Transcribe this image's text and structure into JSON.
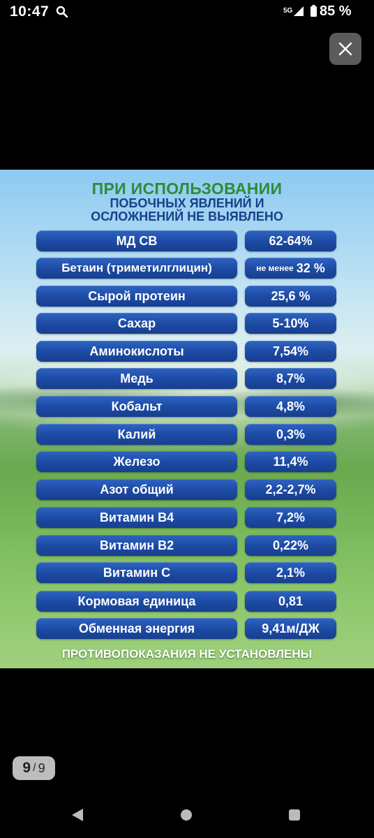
{
  "status_bar": {
    "time": "10:47",
    "network": "5G",
    "battery_percent": "85 %"
  },
  "headline": {
    "line1": "ПРИ ИСПОЛЬЗОВАНИИ",
    "line2": "ПОБОЧНЫХ ЯВЛЕНИЙ И",
    "line3": "ОСЛОЖНЕНИЙ НЕ ВЫЯВЛЕНО"
  },
  "rows": [
    {
      "name": "МД СВ",
      "value": "62-64%"
    },
    {
      "name": "Бетаин (триметилглицин)",
      "value_prefix": "не менее",
      "value": "32 %"
    },
    {
      "name": "Сырой протеин",
      "value": "25,6 %"
    },
    {
      "name": "Сахар",
      "value": "5-10%"
    },
    {
      "name": "Аминокислоты",
      "value": "7,54%"
    },
    {
      "name": "Медь",
      "value": "8,7%"
    },
    {
      "name": "Кобальт",
      "value": "4,8%"
    },
    {
      "name": "Калий",
      "value": "0,3%"
    },
    {
      "name": "Железо",
      "value": "11,4%"
    },
    {
      "name": "Азот общий",
      "value": "2,2-2,7%"
    },
    {
      "name": "Витамин В4",
      "value": "7,2%"
    },
    {
      "name": "Витамин В2",
      "value": "0,22%"
    },
    {
      "name": "Витамин С",
      "value": "2,1%"
    },
    {
      "name": "Кормовая единица",
      "value": "0,81"
    },
    {
      "name": "Обменная энергия",
      "value": "9,41м/ДЖ"
    }
  ],
  "footer": "ПРОТИВОПОКАЗАНИЯ НЕ УСТАНОВЛЕНЫ",
  "page_counter": {
    "current": "9",
    "separator": "/",
    "total": "9"
  },
  "icons": {
    "status": [
      "search-icon",
      "signal-icon",
      "battery-icon"
    ],
    "close": "close-icon",
    "navigation": [
      "back-icon",
      "home-icon",
      "recents-icon"
    ]
  },
  "colors": {
    "pill": "#1c4aa3",
    "headline_green": "#2e8b3a",
    "headline_blue": "#1b3f8a"
  }
}
